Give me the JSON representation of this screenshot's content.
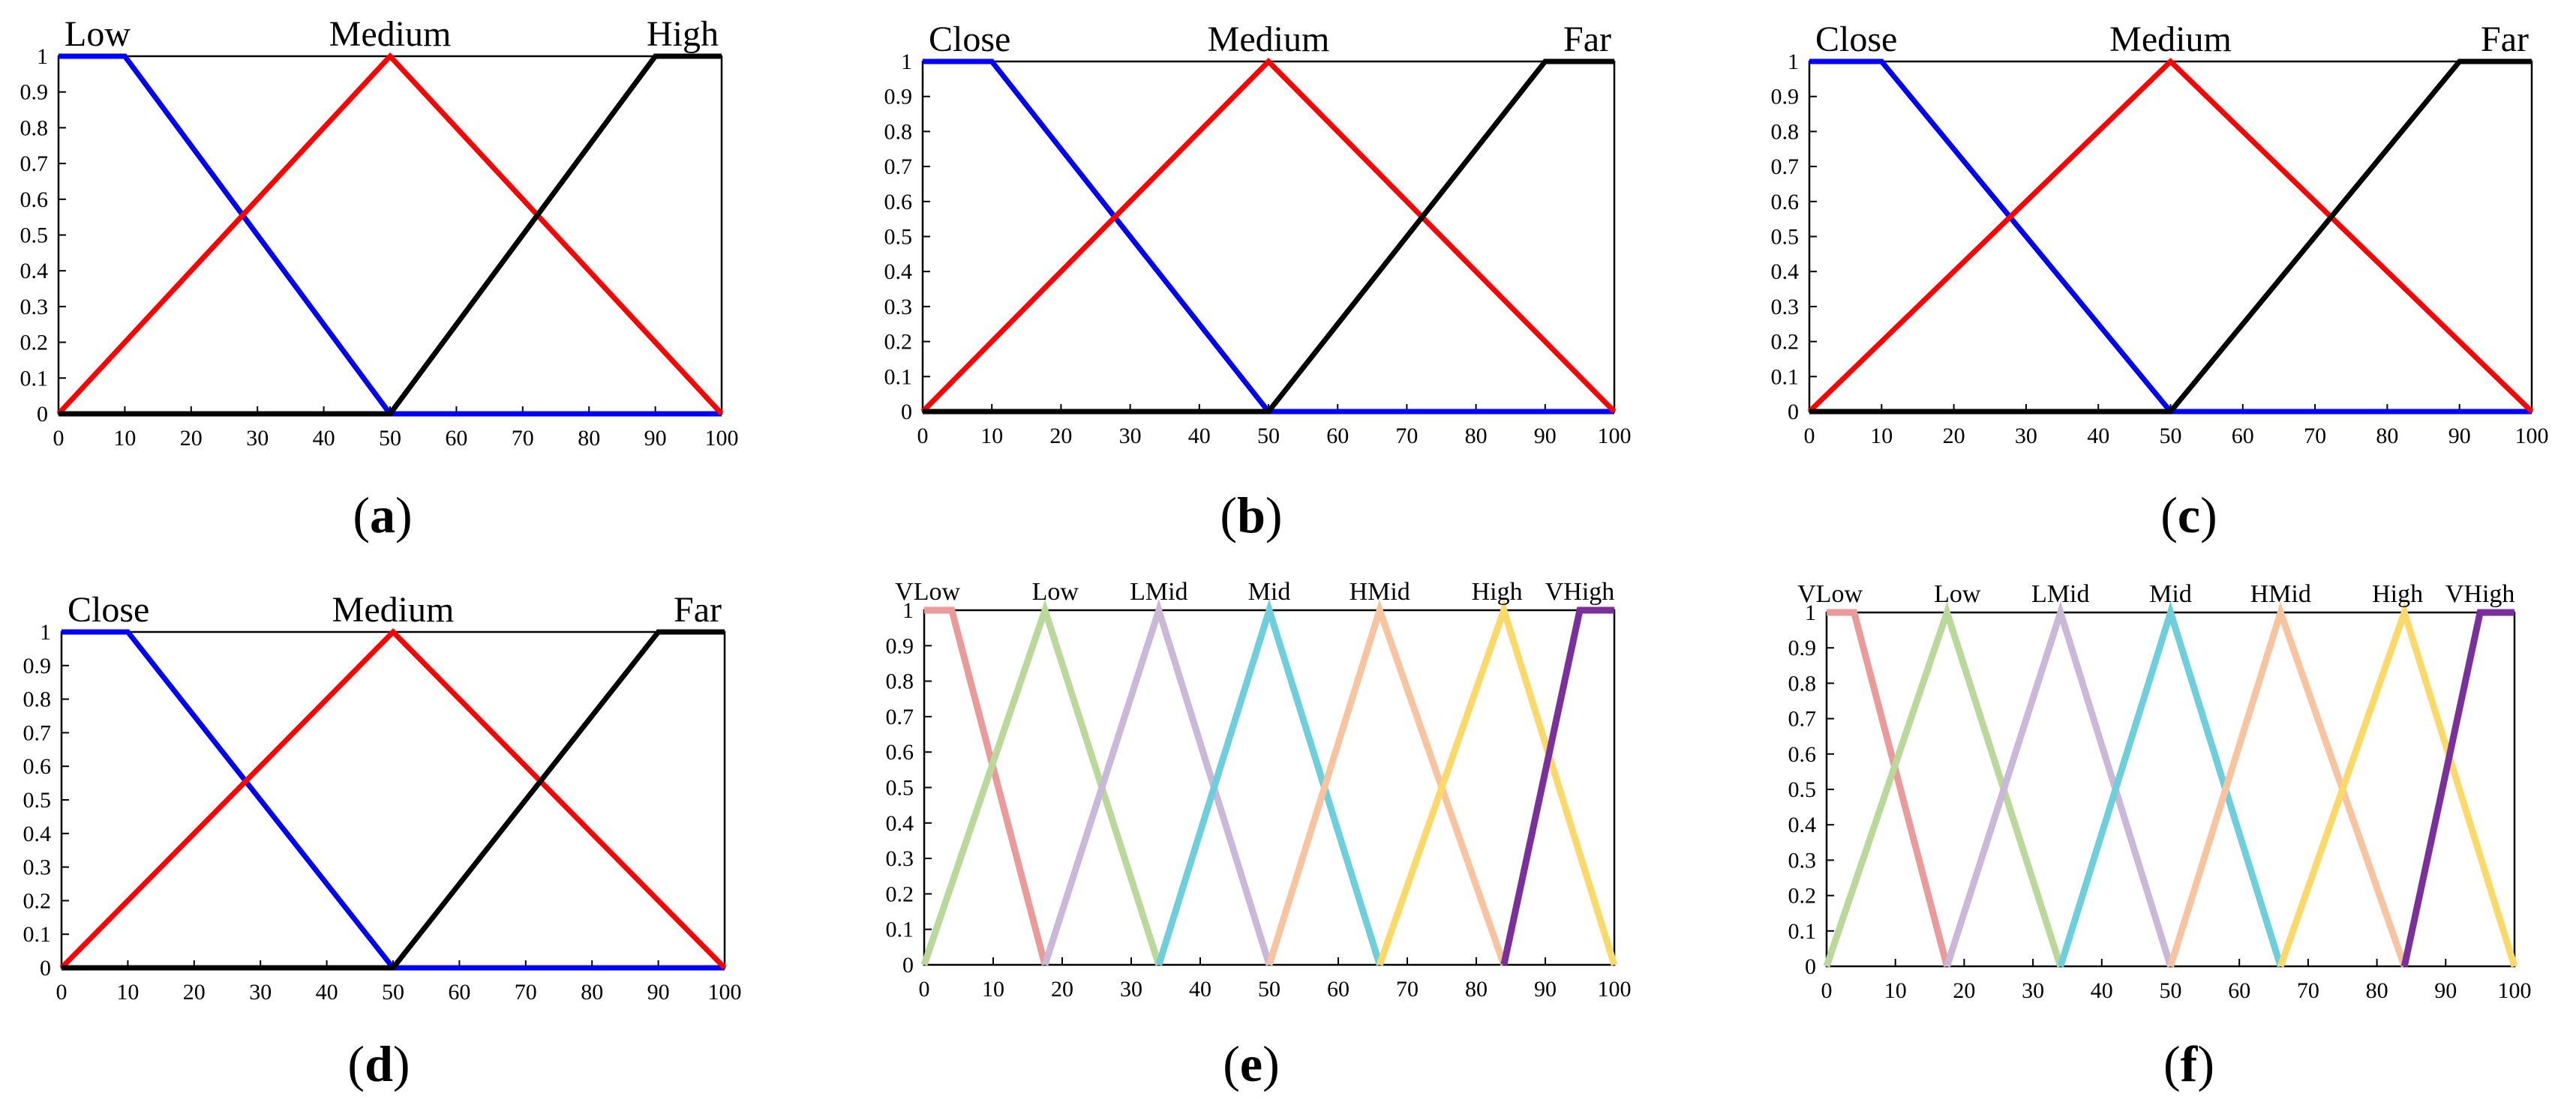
{
  "colors": {
    "blue": "#0000ff",
    "red": "#ff0000",
    "black": "#000000",
    "salmon": "#ea9a98",
    "lightgreen": "#b9d89a",
    "lavender": "#c9b8d8",
    "cyan": "#6ccfdb",
    "peach": "#f7c49f",
    "yellow": "#fbd969",
    "purple": "#7b2f9b"
  },
  "chart_data": [
    {
      "id": "a",
      "type": "line",
      "caption_prefix": "(",
      "caption_letter": "a",
      "caption_suffix": ")",
      "xlim": [
        0,
        100
      ],
      "ylim": [
        0,
        1
      ],
      "xticks": [
        "0",
        "10",
        "20",
        "30",
        "40",
        "50",
        "60",
        "70",
        "80",
        "90",
        "100"
      ],
      "yticks": [
        "0",
        "0.1",
        "0.2",
        "0.3",
        "0.4",
        "0.5",
        "0.6",
        "0.7",
        "0.8",
        "0.9",
        "1"
      ],
      "series": [
        {
          "name": "Low",
          "color": "blue",
          "x": [
            0,
            10,
            50,
            100
          ],
          "y": [
            1,
            1,
            0,
            0
          ]
        },
        {
          "name": "Medium",
          "color": "red",
          "x": [
            0,
            50,
            100
          ],
          "y": [
            0,
            1,
            0
          ]
        },
        {
          "name": "High",
          "color": "black",
          "x": [
            0,
            50,
            90,
            100
          ],
          "y": [
            0,
            0,
            1,
            1
          ]
        }
      ]
    },
    {
      "id": "b",
      "type": "line",
      "caption_prefix": "(",
      "caption_letter": "b",
      "caption_suffix": ")",
      "xlim": [
        0,
        100
      ],
      "ylim": [
        0,
        1
      ],
      "xticks": [
        "0",
        "10",
        "20",
        "30",
        "40",
        "50",
        "60",
        "70",
        "80",
        "90",
        "100"
      ],
      "yticks": [
        "0",
        "0.1",
        "0.2",
        "0.3",
        "0.4",
        "0.5",
        "0.6",
        "0.7",
        "0.8",
        "0.9",
        "1"
      ],
      "series": [
        {
          "name": "Close",
          "color": "blue",
          "x": [
            0,
            10,
            50,
            100
          ],
          "y": [
            1,
            1,
            0,
            0
          ]
        },
        {
          "name": "Medium",
          "color": "red",
          "x": [
            0,
            50,
            100
          ],
          "y": [
            0,
            1,
            0
          ]
        },
        {
          "name": "Far",
          "color": "black",
          "x": [
            0,
            50,
            90,
            100
          ],
          "y": [
            0,
            0,
            1,
            1
          ]
        }
      ]
    },
    {
      "id": "c",
      "type": "line",
      "caption_prefix": "(",
      "caption_letter": "c",
      "caption_suffix": ")",
      "xlim": [
        0,
        100
      ],
      "ylim": [
        0,
        1
      ],
      "xticks": [
        "0",
        "10",
        "20",
        "30",
        "40",
        "50",
        "60",
        "70",
        "80",
        "90",
        "100"
      ],
      "yticks": [
        "0",
        "0.1",
        "0.2",
        "0.3",
        "0.4",
        "0.5",
        "0.6",
        "0.7",
        "0.8",
        "0.9",
        "1"
      ],
      "series": [
        {
          "name": "Close",
          "color": "blue",
          "x": [
            0,
            10,
            50,
            100
          ],
          "y": [
            1,
            1,
            0,
            0
          ]
        },
        {
          "name": "Medium",
          "color": "red",
          "x": [
            0,
            50,
            100
          ],
          "y": [
            0,
            1,
            0
          ]
        },
        {
          "name": "Far",
          "color": "black",
          "x": [
            0,
            50,
            90,
            100
          ],
          "y": [
            0,
            0,
            1,
            1
          ]
        }
      ]
    },
    {
      "id": "d",
      "type": "line",
      "caption_prefix": "(",
      "caption_letter": "d",
      "caption_suffix": ")",
      "xlim": [
        0,
        100
      ],
      "ylim": [
        0,
        1
      ],
      "xticks": [
        "0",
        "10",
        "20",
        "30",
        "40",
        "50",
        "60",
        "70",
        "80",
        "90",
        "100"
      ],
      "yticks": [
        "0",
        "0.1",
        "0.2",
        "0.3",
        "0.4",
        "0.5",
        "0.6",
        "0.7",
        "0.8",
        "0.9",
        "1"
      ],
      "series": [
        {
          "name": "Close",
          "color": "blue",
          "x": [
            0,
            10,
            50,
            100
          ],
          "y": [
            1,
            1,
            0,
            0
          ]
        },
        {
          "name": "Medium",
          "color": "red",
          "x": [
            0,
            50,
            100
          ],
          "y": [
            0,
            1,
            0
          ]
        },
        {
          "name": "Far",
          "color": "black",
          "x": [
            0,
            50,
            90,
            100
          ],
          "y": [
            0,
            0,
            1,
            1
          ]
        }
      ]
    },
    {
      "id": "e",
      "type": "line",
      "caption_prefix": "(",
      "caption_letter": "e",
      "caption_suffix": ")",
      "xlim": [
        0,
        100
      ],
      "ylim": [
        0,
        1
      ],
      "xticks": [
        "0",
        "10",
        "20",
        "30",
        "40",
        "50",
        "60",
        "70",
        "80",
        "90",
        "100"
      ],
      "yticks": [
        "0",
        "0.1",
        "0.2",
        "0.3",
        "0.4",
        "0.5",
        "0.6",
        "0.7",
        "0.8",
        "0.9",
        "1"
      ],
      "series": [
        {
          "name": "VLow",
          "color": "salmon",
          "x": [
            0,
            4,
            17.5
          ],
          "y": [
            1,
            1,
            0
          ]
        },
        {
          "name": "Low",
          "color": "lightgreen",
          "x": [
            0,
            17.5,
            34
          ],
          "y": [
            0,
            1,
            0
          ]
        },
        {
          "name": "LMid",
          "color": "lavender",
          "x": [
            17.5,
            34,
            50
          ],
          "y": [
            0,
            1,
            0
          ]
        },
        {
          "name": "Mid",
          "color": "cyan",
          "x": [
            34,
            50,
            66
          ],
          "y": [
            0,
            1,
            0
          ]
        },
        {
          "name": "HMid",
          "color": "peach",
          "x": [
            50,
            66,
            84
          ],
          "y": [
            0,
            1,
            0
          ]
        },
        {
          "name": "High",
          "color": "yellow",
          "x": [
            66,
            84,
            100
          ],
          "y": [
            0,
            1,
            0
          ]
        },
        {
          "name": "VHigh",
          "color": "purple",
          "x": [
            84,
            95,
            100
          ],
          "y": [
            0,
            1,
            1
          ]
        }
      ]
    },
    {
      "id": "f",
      "type": "line",
      "caption_prefix": "(",
      "caption_letter": "f",
      "caption_suffix": ")",
      "xlim": [
        0,
        100
      ],
      "ylim": [
        0,
        1
      ],
      "xticks": [
        "0",
        "10",
        "20",
        "30",
        "40",
        "50",
        "60",
        "70",
        "80",
        "90",
        "100"
      ],
      "yticks": [
        "0",
        "0.1",
        "0.2",
        "0.3",
        "0.4",
        "0.5",
        "0.6",
        "0.7",
        "0.8",
        "0.9",
        "1"
      ],
      "series": [
        {
          "name": "VLow",
          "color": "salmon",
          "x": [
            0,
            4,
            17.5
          ],
          "y": [
            1,
            1,
            0
          ]
        },
        {
          "name": "Low",
          "color": "lightgreen",
          "x": [
            0,
            17.5,
            34
          ],
          "y": [
            0,
            1,
            0
          ]
        },
        {
          "name": "LMid",
          "color": "lavender",
          "x": [
            17.5,
            34,
            50
          ],
          "y": [
            0,
            1,
            0
          ]
        },
        {
          "name": "Mid",
          "color": "cyan",
          "x": [
            34,
            50,
            66
          ],
          "y": [
            0,
            1,
            0
          ]
        },
        {
          "name": "HMid",
          "color": "peach",
          "x": [
            50,
            66,
            84
          ],
          "y": [
            0,
            1,
            0
          ]
        },
        {
          "name": "High",
          "color": "yellow",
          "x": [
            66,
            84,
            100
          ],
          "y": [
            0,
            1,
            0
          ]
        },
        {
          "name": "VHigh",
          "color": "purple",
          "x": [
            84,
            95,
            100
          ],
          "y": [
            0,
            1,
            1
          ]
        }
      ]
    }
  ]
}
